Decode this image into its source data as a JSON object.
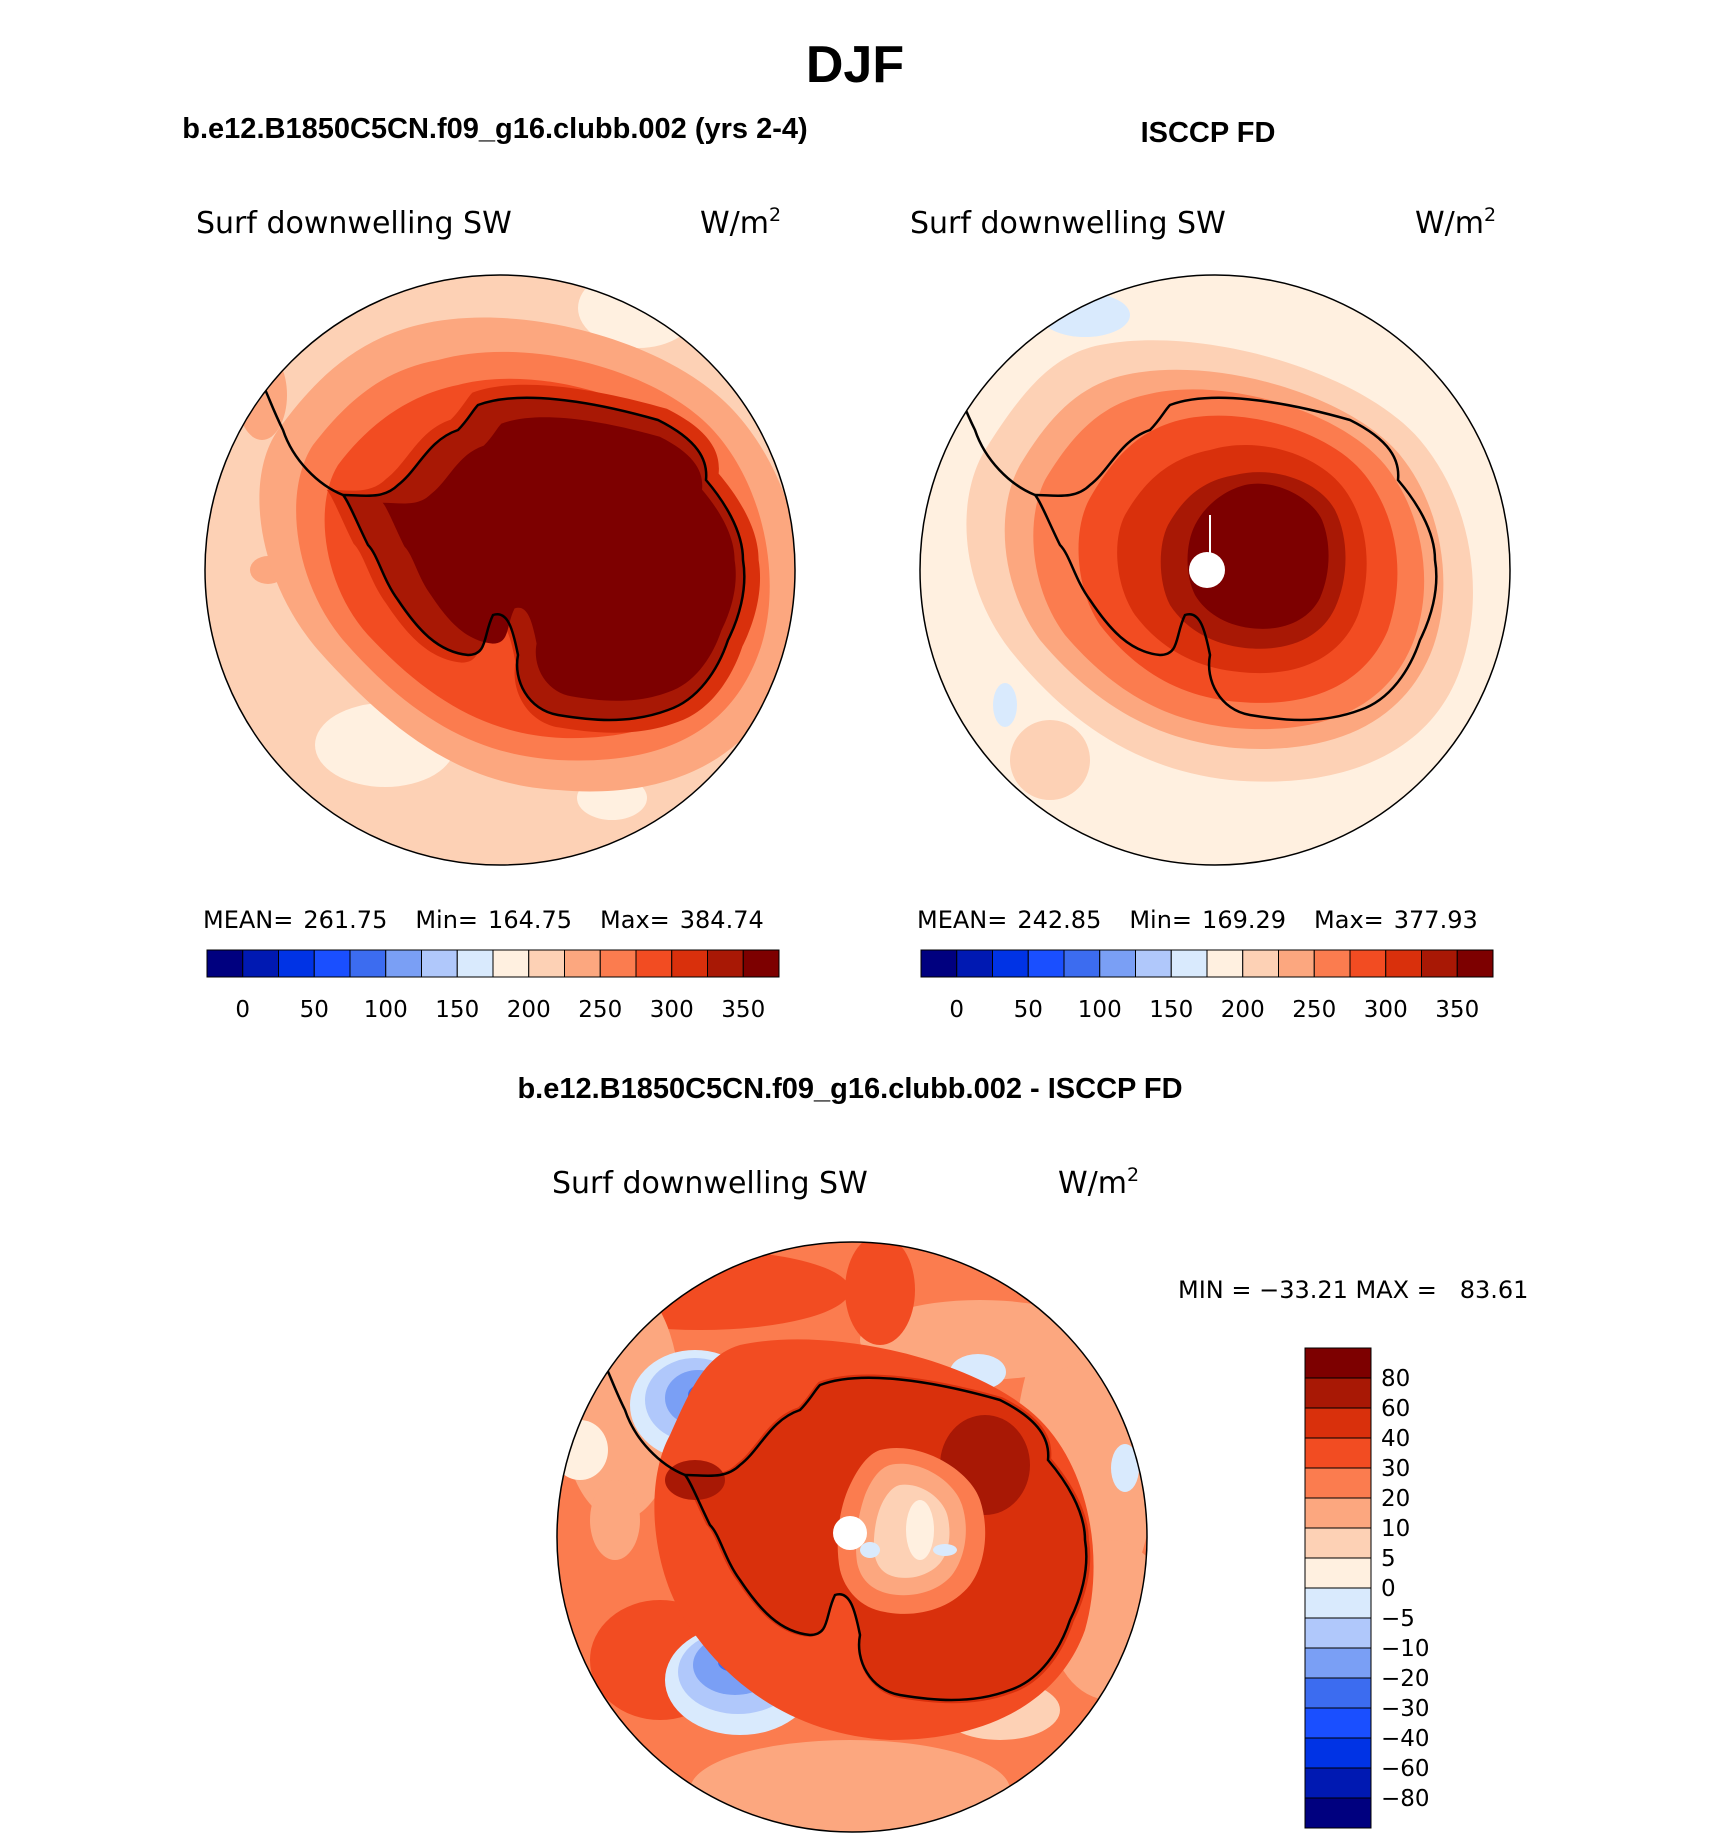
{
  "title": "DJF",
  "panels": [
    {
      "id": "model",
      "heading": "b.e12.B1850C5CN.f09_g16.clubb.002 (yrs 2-4)",
      "variable": "Surf downwelling SW",
      "units_base": "W/m",
      "units_exp": "2",
      "stats": {
        "mean_label": "MEAN=",
        "mean": "261.75",
        "min_label": "Min=",
        "min": "164.75",
        "max_label": "Max=",
        "max": "384.74"
      },
      "has_pole_hole": false
    },
    {
      "id": "obs",
      "heading": "ISCCP FD",
      "variable": "Surf downwelling SW",
      "units_base": "W/m",
      "units_exp": "2",
      "stats": {
        "mean_label": "MEAN=",
        "mean": "242.85",
        "min_label": "Min=",
        "min": "169.29",
        "max_label": "Max=",
        "max": "377.93"
      },
      "has_pole_hole": true
    }
  ],
  "abs_colorbar": {
    "colors": [
      "#00007f",
      "#0019b2",
      "#0033e5",
      "#1a4fff",
      "#3c6cf0",
      "#7a9ff5",
      "#b0c8fb",
      "#d9eafd",
      "#fff0e0",
      "#fdd1b5",
      "#fca77f",
      "#fb7c4f",
      "#f24c22",
      "#d9300c",
      "#a81805",
      "#7d0000"
    ],
    "tick_labels": [
      "0",
      "50",
      "100",
      "150",
      "200",
      "250",
      "300",
      "350"
    ]
  },
  "difference": {
    "heading": "b.e12.B1850C5CN.f09_g16.clubb.002 - ISCCP FD",
    "variable": "Surf downwelling SW",
    "units_base": "W/m",
    "units_exp": "2",
    "minmax_text": "MIN = −33.21 MAX =   83.61",
    "colorbar": {
      "colors": [
        "#7d0000",
        "#a81805",
        "#d9300c",
        "#f24c22",
        "#fb7c4f",
        "#fca77f",
        "#fdd1b5",
        "#fff0e0",
        "#d9eafd",
        "#b0c8fb",
        "#7a9ff5",
        "#3c6cf0",
        "#1a4fff",
        "#0033e5",
        "#0019b2",
        "#00007f"
      ],
      "tick_labels": [
        "80",
        "60",
        "40",
        "30",
        "20",
        "10",
        "5",
        "0",
        "−5",
        "−10",
        "−20",
        "−30",
        "−40",
        "−60",
        "−80"
      ]
    }
  },
  "map_palette": {
    "ocean_far": "#fdd1b5",
    "ocean_light": "#fff0e0",
    "ring_mid": "#fca77f",
    "ring_inner": "#fb7c4f",
    "coast_ring": "#f24c22",
    "coast_dark": "#d9300c",
    "interior": "#a81805",
    "plateau": "#7d0000",
    "blue_light": "#d9eafd",
    "blue_mid": "#b0c8fb",
    "blue_strong": "#7a9ff5",
    "blue_deep": "#3c6cf0",
    "coast_line": "#000000"
  }
}
